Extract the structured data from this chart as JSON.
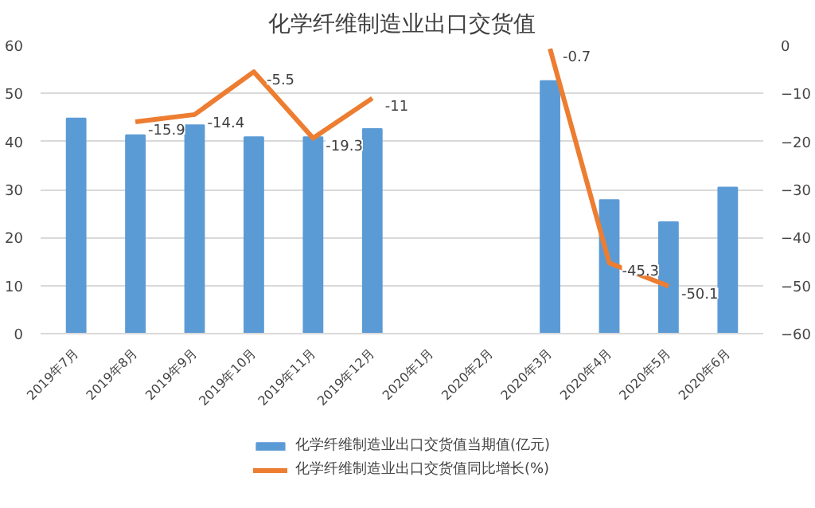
{
  "chart_data": {
    "type": "bar",
    "title": "化学纤维制造业出口交货值",
    "categories": [
      "2019年7月",
      "2019年8月",
      "2019年9月",
      "2019年10月",
      "2019年11月",
      "2019年12月",
      "2020年1月",
      "2020年2月",
      "2020年3月",
      "2020年4月",
      "2020年5月",
      "2020年6月"
    ],
    "series": [
      {
        "name": "化学纤维制造业出口交货值当期值(亿元)",
        "color": "#5b9bd5",
        "values": [
          44.8,
          41.3,
          43.4,
          40.9,
          40.9,
          42.6,
          null,
          null,
          52.6,
          27.8,
          23.2,
          30.4
        ]
      },
      {
        "name": "化学纤维制造业出口交货值同比增长(%)",
        "color": "#ed7d31",
        "type": "line",
        "axis": "y2",
        "values": [
          null,
          -15.9,
          -14.4,
          -5.5,
          -19.3,
          -11,
          null,
          null,
          -0.7,
          -45.3,
          -50.1,
          null
        ],
        "value_labels": [
          null,
          "-15.9",
          "-14.4",
          "-5.5",
          "-19.3",
          "-11",
          null,
          null,
          "-0.7",
          "-45.3",
          "-50.1",
          null
        ]
      }
    ],
    "ylim": [
      0,
      60
    ],
    "yticks": [
      0,
      10,
      20,
      30,
      40,
      50,
      60
    ],
    "y2lim": [
      -60,
      0
    ],
    "y2ticks": [
      -60,
      -50,
      -40,
      -30,
      -20,
      -10,
      0
    ],
    "grid": "y",
    "legend": "bottom"
  }
}
